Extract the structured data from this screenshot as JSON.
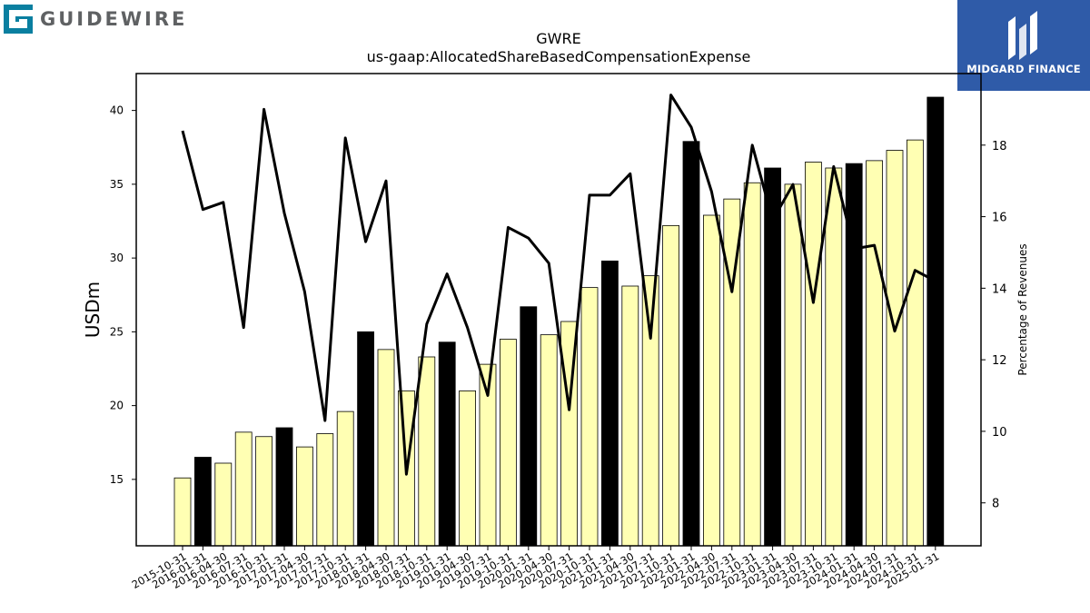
{
  "logos": {
    "left_text": "GUIDEWIRE",
    "right_text": "MIDGARD FINANCE",
    "left_color": "#0a7fa0",
    "right_bg": "#2f5ba8"
  },
  "chart_data": {
    "type": "bar",
    "title": "GWRE",
    "subtitle": "us-gaap:AllocatedShareBasedCompensationExpense",
    "ylabel": "USDm",
    "y2label": "Percentage of Revenues",
    "ylim": [
      10.5,
      42.5
    ],
    "y2lim": [
      6.8,
      20.0
    ],
    "yticks": [
      15,
      20,
      25,
      30,
      35,
      40
    ],
    "y2ticks": [
      8,
      10,
      12,
      14,
      16,
      18
    ],
    "bar_colors": {
      "quarter": "#ffffb3",
      "fiscal_year_end": "#000000"
    },
    "categories": [
      "2015-10-31",
      "2016-01-31",
      "2016-04-30",
      "2016-07-31",
      "2016-10-31",
      "2017-01-31",
      "2017-04-30",
      "2017-07-31",
      "2017-10-31",
      "2018-01-31",
      "2018-04-30",
      "2018-07-31",
      "2018-10-31",
      "2019-01-31",
      "2019-04-30",
      "2019-07-31",
      "2019-10-31",
      "2020-01-31",
      "2020-04-30",
      "2020-07-31",
      "2020-10-31",
      "2021-01-31",
      "2021-04-30",
      "2021-07-31",
      "2021-10-31",
      "2022-01-31",
      "2022-04-30",
      "2022-07-31",
      "2022-10-31",
      "2023-01-31",
      "2023-04-30",
      "2023-07-31",
      "2023-10-31",
      "2024-01-31",
      "2024-04-30",
      "2024-07-31",
      "2024-10-31",
      "2025-01-31"
    ],
    "series": [
      {
        "type": "bar",
        "values": [
          15.1,
          16.5,
          16.1,
          18.2,
          17.9,
          18.5,
          17.2,
          18.1,
          19.6,
          25.0,
          23.8,
          21.0,
          23.3,
          24.3,
          21.0,
          22.8,
          24.5,
          26.7,
          24.8,
          25.7,
          28.0,
          29.8,
          28.1,
          28.8,
          32.2,
          37.9,
          32.9,
          34.0,
          35.1,
          36.1,
          35.0,
          36.5,
          36.1,
          36.4,
          36.6,
          37.3,
          38.0,
          40.9
        ],
        "highlight": [
          false,
          true,
          false,
          false,
          false,
          true,
          false,
          false,
          false,
          true,
          false,
          false,
          false,
          true,
          false,
          false,
          false,
          true,
          false,
          false,
          false,
          true,
          false,
          false,
          false,
          true,
          false,
          false,
          false,
          true,
          false,
          false,
          false,
          true,
          false,
          false,
          false,
          true
        ]
      },
      {
        "type": "line",
        "axis": "right",
        "values": [
          18.4,
          16.2,
          16.4,
          12.9,
          19.0,
          16.1,
          13.9,
          10.3,
          18.2,
          15.3,
          17.0,
          8.8,
          13.0,
          14.4,
          12.9,
          11.0,
          15.7,
          15.4,
          14.7,
          10.6,
          16.6,
          16.6,
          17.2,
          12.6,
          19.4,
          18.5,
          16.7,
          13.9,
          18.0,
          15.9,
          16.9,
          13.6,
          17.4,
          15.1,
          15.2,
          12.8,
          14.5,
          14.2
        ]
      }
    ]
  }
}
